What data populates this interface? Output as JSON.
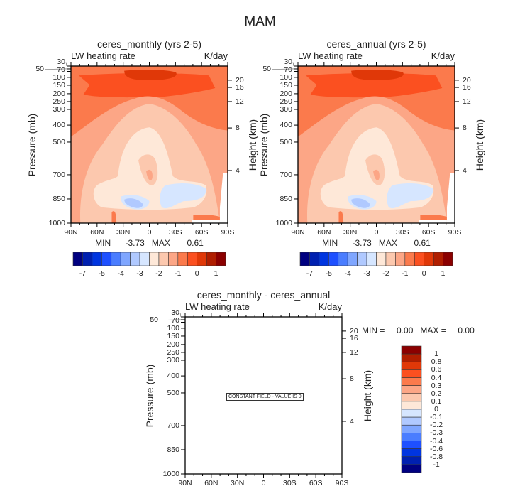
{
  "title": "MAM",
  "chart_data": [
    {
      "type": "contour",
      "title": "ceres_monthly (yrs 2-5)",
      "left_string": "LW heating rate",
      "right_string": "K/day",
      "xlabel": "",
      "ylabel": "Pressure (mb)",
      "ylabel_right": "Height (km)",
      "x_ticks": [
        "90N",
        "60N",
        "30N",
        "0",
        "30S",
        "60S",
        "90S"
      ],
      "y_ticks": [
        "30",
        "50",
        "70",
        "100",
        "150",
        "200",
        "250",
        "300",
        "400",
        "500",
        "700",
        "850",
        "1000"
      ],
      "y_right_ticks": [
        "20",
        "16",
        "12",
        "8",
        "4"
      ],
      "min_max": "MIN =   -3.73   MAX =    0.61",
      "colorbar": {
        "orientation": "horizontal",
        "labels": [
          "-7",
          "-5",
          "-4",
          "-3",
          "-2",
          "-1",
          "0",
          "1"
        ]
      },
      "field": "zonal-mean LW heating rate; strongest heating (~0.4 to 0.6 K/day) near 100 mb over the tropics, cooling minima (~-3 to -4) near 850-950 mb between 30N and 30S"
    },
    {
      "type": "contour",
      "title": "ceres_annual (yrs 2-5)",
      "left_string": "LW heating rate",
      "right_string": "K/day",
      "xlabel": "",
      "ylabel": "Pressure (mb)",
      "ylabel_right": "Height (km)",
      "x_ticks": [
        "90N",
        "60N",
        "30N",
        "0",
        "30S",
        "60S",
        "90S"
      ],
      "y_ticks": [
        "30",
        "50",
        "70",
        "100",
        "150",
        "200",
        "250",
        "300",
        "400",
        "500",
        "700",
        "850",
        "1000"
      ],
      "y_right_ticks": [
        "20",
        "16",
        "12",
        "8",
        "4"
      ],
      "min_max": "MIN =   -3.73   MAX =    0.61",
      "colorbar": {
        "orientation": "horizontal",
        "labels": [
          "-7",
          "-5",
          "-4",
          "-3",
          "-2",
          "-1",
          "0",
          "1"
        ]
      }
    },
    {
      "type": "contour",
      "title": "ceres_monthly - ceres_annual",
      "left_string": "LW heating rate",
      "right_string": "K/day",
      "xlabel": "",
      "ylabel": "Pressure (mb)",
      "ylabel_right": "Height (km)",
      "x_ticks": [
        "90N",
        "60N",
        "30N",
        "0",
        "30S",
        "60S",
        "90S"
      ],
      "y_ticks": [
        "30",
        "50",
        "70",
        "100",
        "150",
        "200",
        "250",
        "300",
        "400",
        "500",
        "700",
        "850",
        "1000"
      ],
      "y_right_ticks": [
        "20",
        "16",
        "12",
        "8",
        "4"
      ],
      "min_max": "MIN =     0.00   MAX =     0.00",
      "constant_field_label": "CONSTANT FIELD - VALUE IS 0",
      "colorbar": {
        "orientation": "vertical",
        "labels": [
          "1",
          "0.8",
          "0.6",
          "0.4",
          "0.3",
          "0.2",
          "0.1",
          "0",
          "-0.1",
          "-0.2",
          "-0.3",
          "-0.4",
          "-0.6",
          "-0.8",
          "-1"
        ]
      }
    }
  ],
  "palette": [
    "#000080",
    "#0020b0",
    "#0035e0",
    "#1e50ff",
    "#4a7dff",
    "#7fa6ff",
    "#b0c9ff",
    "#d6e6ff",
    "#fee8d8",
    "#fcc8ae",
    "#fca686",
    "#fb7a4c",
    "#fb5020",
    "#e03808",
    "#b01e00",
    "#8b0000"
  ]
}
